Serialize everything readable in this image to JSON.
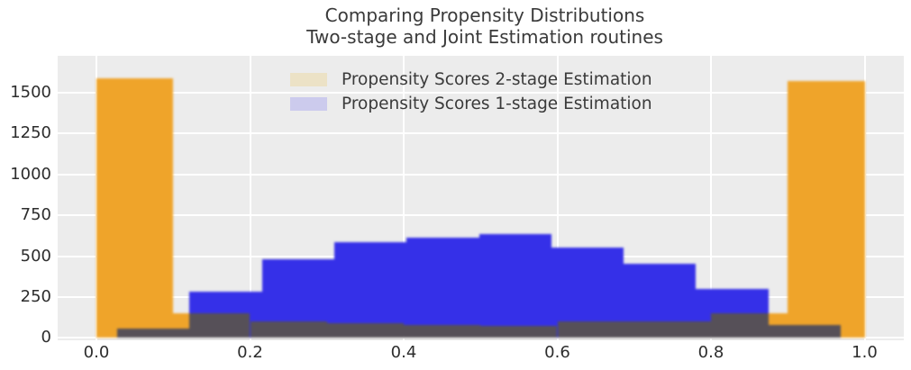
{
  "title": {
    "line1": "Comparing Propensity Distributions",
    "line2": "Two-stage and Joint Estimation routines"
  },
  "legend": {
    "position": "upper center",
    "items": [
      {
        "label": "Propensity Scores 2-stage Estimation",
        "swatch_color": "#ece2c6"
      },
      {
        "label": "Propensity Scores 1-stage Estimation",
        "swatch_color": "#cccbed"
      }
    ]
  },
  "colors": {
    "figure_background": "#ffffff",
    "axes_background": "#ececec",
    "gridline": "#ffffff",
    "tick_label": "#2d2d2d",
    "title_text": "#3a3a3a",
    "series_2stage": "#efa42a",
    "series_1stage": "#3530e8",
    "overlap": "#565058"
  },
  "chart_data": {
    "type": "bar",
    "subtype": "overlaid-histograms",
    "title": "Comparing Propensity Distributions\nTwo-stage and Joint Estimation routines",
    "xlabel": "",
    "ylabel": "",
    "xlim": [
      -0.05,
      1.05
    ],
    "ylim": [
      0,
      1726
    ],
    "grid": true,
    "legend_position": "upper center",
    "x_ticks": [
      {
        "label": "0.0",
        "value": 0.0
      },
      {
        "label": "0.2",
        "value": 0.2
      },
      {
        "label": "0.4",
        "value": 0.4
      },
      {
        "label": "0.6",
        "value": 0.6
      },
      {
        "label": "0.8",
        "value": 0.8
      },
      {
        "label": "1.0",
        "value": 1.0
      }
    ],
    "y_ticks": [
      {
        "label": "0",
        "value": 0
      },
      {
        "label": "250",
        "value": 250
      },
      {
        "label": "500",
        "value": 500
      },
      {
        "label": "750",
        "value": 750
      },
      {
        "label": "1000",
        "value": 1000
      },
      {
        "label": "1250",
        "value": 1250
      },
      {
        "label": "1500",
        "value": 1500
      }
    ],
    "series": [
      {
        "name": "Propensity Scores 2-stage Estimation",
        "color": "#efa42a",
        "legend_swatch_color": "#ece2c6",
        "bin_edges": [
          0.0,
          0.1,
          0.2,
          0.3,
          0.4,
          0.5,
          0.6,
          0.7,
          0.8,
          0.9,
          1.0
        ],
        "counts": [
          1590,
          150,
          100,
          90,
          82,
          76,
          100,
          103,
          150,
          1570
        ]
      },
      {
        "name": "Propensity Scores 1-stage Estimation",
        "color": "#3530e8",
        "legend_swatch_color": "#cccbed",
        "bin_edges": [
          0.027,
          0.1212,
          0.2154,
          0.3096,
          0.4038,
          0.498,
          0.5922,
          0.6864,
          0.7806,
          0.8748,
          0.969
        ],
        "counts": [
          55,
          285,
          480,
          585,
          615,
          633,
          550,
          455,
          302,
          80
        ]
      }
    ],
    "overlap_color": "#565058",
    "overlap_note": "dark region = visual overlap of the two histograms (min of both counts)"
  }
}
